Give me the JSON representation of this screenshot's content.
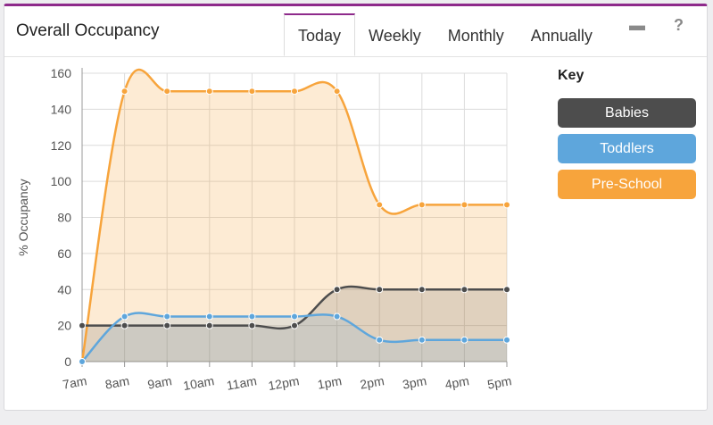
{
  "header": {
    "title": "Overall Occupancy",
    "tabs": [
      {
        "label": "Today",
        "active": true
      },
      {
        "label": "Weekly",
        "active": false
      },
      {
        "label": "Monthly",
        "active": false
      },
      {
        "label": "Annually",
        "active": false
      }
    ],
    "minimize_symbol": "▬",
    "help_symbol": "?"
  },
  "key": {
    "title": "Key",
    "items": [
      {
        "label": "Babies",
        "color": "#4d4d4d"
      },
      {
        "label": "Toddlers",
        "color": "#5ea6dc"
      },
      {
        "label": "Pre-School",
        "color": "#f7a43c"
      }
    ]
  },
  "chart_data": {
    "type": "area",
    "title": "",
    "xlabel": "",
    "ylabel": "% Occupancy",
    "categories": [
      "7am",
      "8am",
      "9am",
      "10am",
      "11am",
      "12pm",
      "1pm",
      "2pm",
      "3pm",
      "4pm",
      "5pm"
    ],
    "ylim": [
      0,
      160
    ],
    "yticks": [
      0,
      20,
      40,
      60,
      80,
      100,
      120,
      140,
      160
    ],
    "grid": true,
    "series": [
      {
        "name": "Pre-School",
        "color": "#f7a43c",
        "values": [
          0,
          150,
          150,
          150,
          150,
          150,
          150,
          87,
          87,
          87,
          87
        ]
      },
      {
        "name": "Babies",
        "color": "#4d4d4d",
        "values": [
          20,
          20,
          20,
          20,
          20,
          20,
          40,
          40,
          40,
          40,
          40
        ]
      },
      {
        "name": "Toddlers",
        "color": "#5ea6dc",
        "values": [
          0,
          25,
          25,
          25,
          25,
          25,
          25,
          12,
          12,
          12,
          12
        ]
      }
    ]
  }
}
